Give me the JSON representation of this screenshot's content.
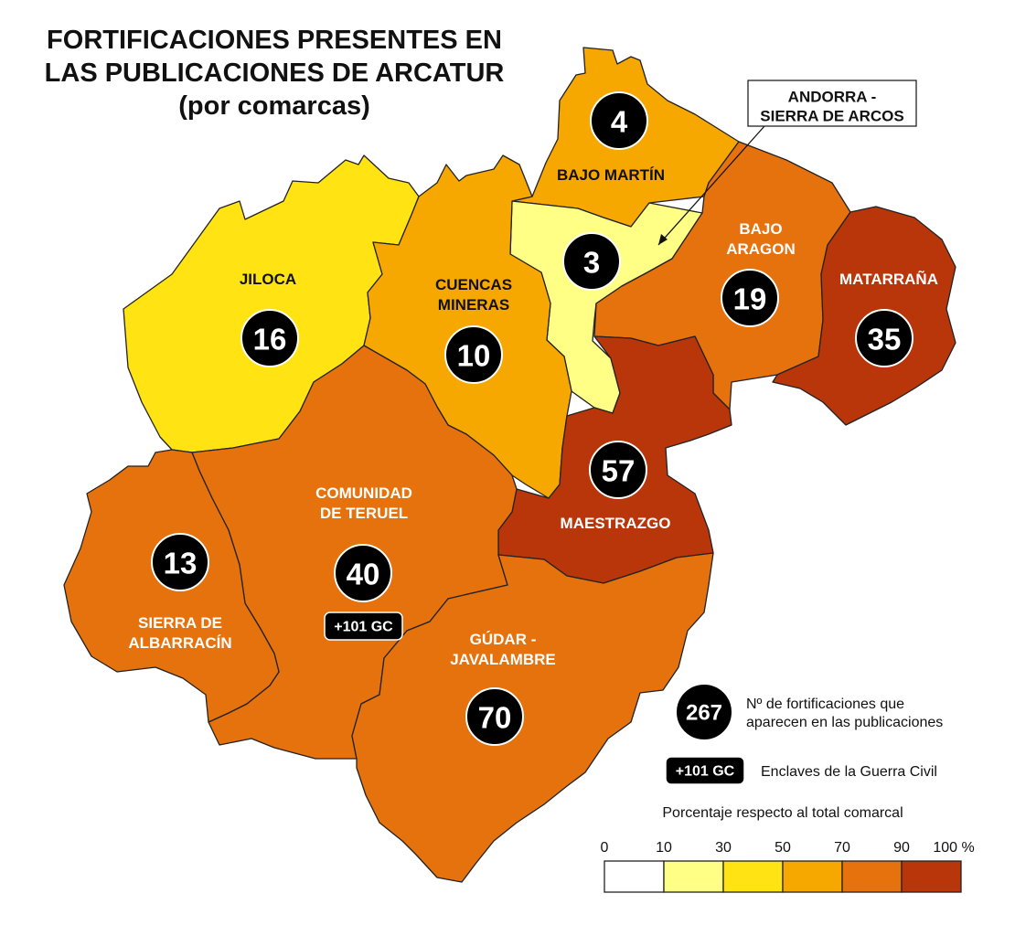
{
  "title": {
    "line1": "FORTIFICACIONES PRESENTES EN",
    "line2": "LAS PUBLICACIONES DE ARCATUR",
    "line3": "(por comarcas)"
  },
  "regions": [
    {
      "id": "bajo-martin",
      "label": [
        "BAJO MARTÍN"
      ],
      "count": "4",
      "class": "30-50",
      "fill": "#F7A800",
      "label_color": "#111111"
    },
    {
      "id": "andorra-sierra-de-arcos",
      "label": [
        "ANDORRA -",
        "SIERRA DE ARCOS"
      ],
      "count": "3",
      "class": "10-30",
      "fill": "#FFFF85",
      "label_color": "#111111"
    },
    {
      "id": "bajo-aragon",
      "label": [
        "BAJO",
        "ARAGON"
      ],
      "count": "19",
      "class": "70-90",
      "fill": "#E5720C",
      "label_color": "#FFFFFF"
    },
    {
      "id": "matarrana",
      "label": [
        "MATARRAÑA"
      ],
      "count": "35",
      "class": "90-100",
      "fill": "#B8360A",
      "label_color": "#FFFFFF"
    },
    {
      "id": "jiloca",
      "label": [
        "JILOCA"
      ],
      "count": "16",
      "class": "30-50",
      "fill": "#FFE313",
      "label_color": "#111111"
    },
    {
      "id": "cuencas-mineras",
      "label": [
        "CUENCAS",
        "MINERAS"
      ],
      "count": "10",
      "class": "50-70",
      "fill": "#F7A800",
      "label_color": "#111111"
    },
    {
      "id": "maestrazgo",
      "label": [
        "MAESTRAZGO"
      ],
      "count": "57",
      "class": "90-100",
      "fill": "#B8360A",
      "label_color": "#FFFFFF"
    },
    {
      "id": "comunidad-de-teruel",
      "label": [
        "COMUNIDAD",
        "DE TERUEL"
      ],
      "count": "40",
      "gc": "+101 GC",
      "class": "70-90",
      "fill": "#E5720C",
      "label_color": "#FFFFFF"
    },
    {
      "id": "sierra-de-albarracin",
      "label": [
        "SIERRA DE",
        "ALBARRACÍN"
      ],
      "count": "13",
      "class": "70-90",
      "fill": "#E5720C",
      "label_color": "#FFFFFF"
    },
    {
      "id": "gudar-javalambre",
      "label": [
        "GÚDAR -",
        "JAVALAMBRE"
      ],
      "count": "70",
      "class": "70-90",
      "fill": "#E5720C",
      "label_color": "#FFFFFF"
    }
  ],
  "legend": {
    "count_example": "267",
    "count_text_1": "Nº de fortificaciones que",
    "count_text_2": "aparecen en las publicaciones",
    "gc_example": "+101 GC",
    "gc_text": "Enclaves de la Guerra Civil",
    "scale_title": "Porcentaje respecto al total comarcal",
    "scale_ticks": [
      "0",
      "10",
      "30",
      "50",
      "70",
      "90",
      "100 %"
    ],
    "scale_colors": [
      "#FFFFFF",
      "#FFFF85",
      "#FFE313",
      "#F7A800",
      "#E5720C",
      "#B8360A"
    ]
  }
}
